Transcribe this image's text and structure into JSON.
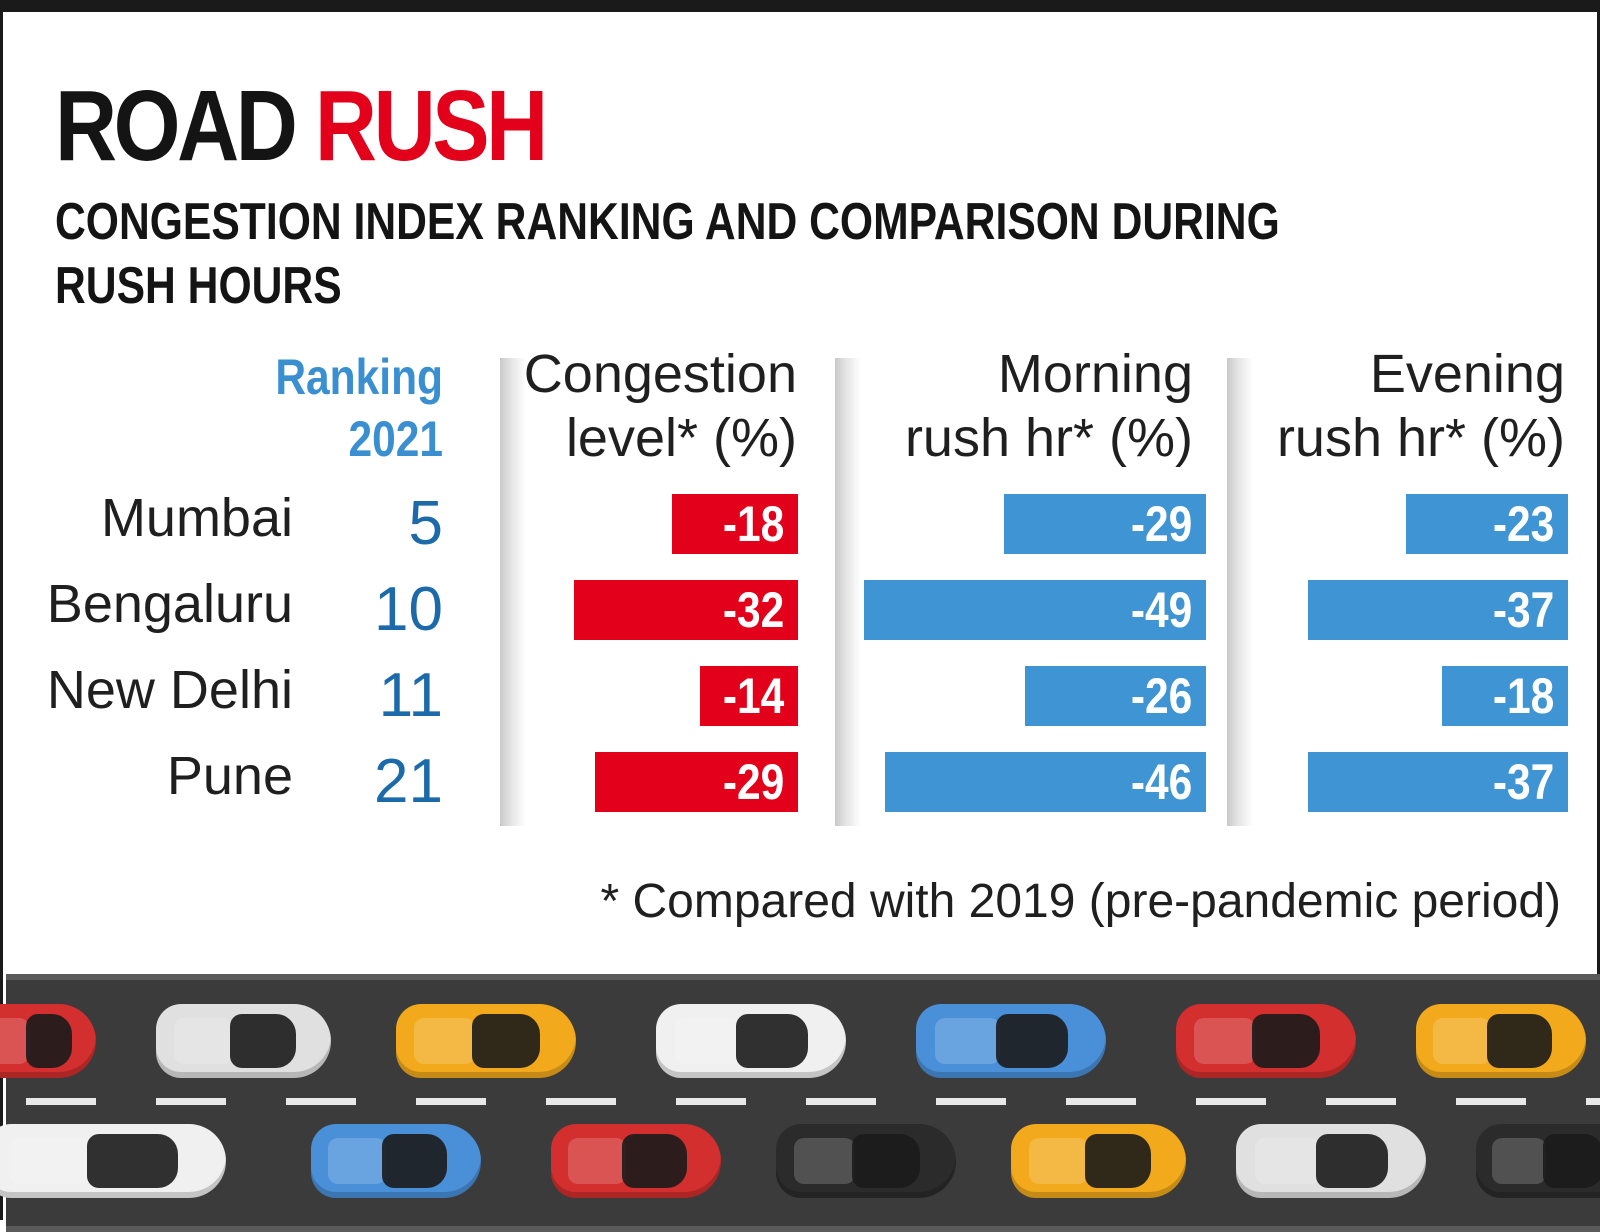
{
  "header": {
    "title_part1": "ROAD",
    "title_part2": "RUSH",
    "subtitle": "CONGESTION INDEX RANKING  AND COMPARISON DURING RUSH HOURS"
  },
  "columns": {
    "ranking_line1": "Ranking",
    "ranking_line2": "2021",
    "congestion_line1": "Congestion",
    "congestion_line2": "level*  (%)",
    "morning_line1": "Morning",
    "morning_line2": "rush hr* (%)",
    "evening_line1": "Evening",
    "evening_line2": "rush hr* (%)"
  },
  "chart_data": {
    "type": "bar",
    "title": "ROAD RUSH",
    "subtitle": "CONGESTION INDEX RANKING  AND COMPARISON DURING RUSH HOURS",
    "categories": [
      "Mumbai",
      "Bengaluru",
      "New Delhi",
      "Pune"
    ],
    "ranking_2021": [
      5,
      10,
      11,
      21
    ],
    "series": [
      {
        "name": "Congestion level* (%)",
        "values": [
          -18,
          -32,
          -14,
          -29
        ],
        "color": "#e2001a"
      },
      {
        "name": "Morning rush hr* (%)",
        "values": [
          -29,
          -49,
          -26,
          -46
        ],
        "color": "#3f94d4"
      },
      {
        "name": "Evening rush hr* (%)",
        "values": [
          -23,
          -37,
          -18,
          -37
        ],
        "color": "#3f94d4"
      }
    ],
    "orientation": "horizontal",
    "grid": false
  },
  "labels": {
    "rows": [
      {
        "city": "Mumbai",
        "rank": "5",
        "congestion": "-18",
        "morning": "-29",
        "evening": "-23"
      },
      {
        "city": "Bengaluru",
        "rank": "10",
        "congestion": "-32",
        "morning": "-49",
        "evening": "-37"
      },
      {
        "city": "New Delhi",
        "rank": "11",
        "congestion": "-14",
        "morning": "-26",
        "evening": "-18"
      },
      {
        "city": "Pune",
        "rank": "21",
        "congestion": "-29",
        "morning": "-46",
        "evening": "-37"
      }
    ]
  },
  "footnote": "* Compared with 2019 (pre-pandemic period)",
  "illustration": {
    "subject": "traffic-jam-cars",
    "car_colors": [
      "#d32f2f",
      "#e0e0e0",
      "#f2a91c",
      "#f0f0f0",
      "#4a90d9",
      "#d32f2f",
      "#f2a91c",
      "#2b2b2b"
    ]
  }
}
